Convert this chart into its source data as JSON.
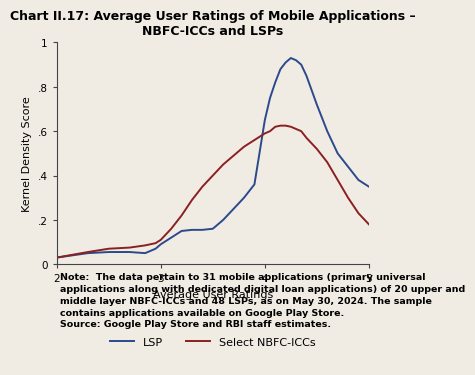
{
  "title": "Chart II.17: Average User Ratings of Mobile Applications –\nNBFC-ICCs and LSPs",
  "xlabel": "Average User Ratings",
  "ylabel": "Kernel Density Score",
  "background_color": "#f0ece4",
  "lsp_color": "#2b4a8c",
  "nbfc_color": "#8b2020",
  "lsp_label": "LSP",
  "nbfc_label": "Select NBFC-ICCs",
  "xlim": [
    2,
    5
  ],
  "ylim": [
    0,
    1.0
  ],
  "yticks": [
    0,
    0.2,
    0.4,
    0.6,
    0.8,
    1.0
  ],
  "ytick_labels": [
    "0",
    ".2",
    ".4",
    ".6",
    ".8",
    "1"
  ],
  "xticks": [
    2,
    3,
    4,
    5
  ],
  "lsp_x": [
    2.0,
    2.3,
    2.5,
    2.7,
    2.85,
    2.95,
    3.0,
    3.1,
    3.2,
    3.3,
    3.4,
    3.5,
    3.6,
    3.7,
    3.8,
    3.9,
    4.0,
    4.05,
    4.1,
    4.15,
    4.2,
    4.25,
    4.3,
    4.35,
    4.4,
    4.5,
    4.6,
    4.7,
    4.8,
    4.9,
    5.0
  ],
  "lsp_y": [
    0.03,
    0.05,
    0.055,
    0.055,
    0.05,
    0.07,
    0.09,
    0.12,
    0.15,
    0.155,
    0.155,
    0.16,
    0.2,
    0.25,
    0.3,
    0.36,
    0.65,
    0.75,
    0.82,
    0.88,
    0.91,
    0.93,
    0.92,
    0.9,
    0.85,
    0.72,
    0.6,
    0.5,
    0.44,
    0.38,
    0.35
  ],
  "nbfc_x": [
    2.0,
    2.3,
    2.5,
    2.7,
    2.85,
    2.95,
    3.0,
    3.1,
    3.2,
    3.3,
    3.4,
    3.5,
    3.6,
    3.7,
    3.8,
    3.9,
    4.0,
    4.05,
    4.1,
    4.15,
    4.2,
    4.25,
    4.3,
    4.35,
    4.4,
    4.5,
    4.6,
    4.7,
    4.8,
    4.9,
    5.0
  ],
  "nbfc_y": [
    0.03,
    0.055,
    0.07,
    0.075,
    0.085,
    0.095,
    0.11,
    0.16,
    0.22,
    0.29,
    0.35,
    0.4,
    0.45,
    0.49,
    0.53,
    0.56,
    0.59,
    0.6,
    0.62,
    0.625,
    0.625,
    0.62,
    0.61,
    0.6,
    0.57,
    0.52,
    0.46,
    0.38,
    0.3,
    0.23,
    0.18
  ],
  "note_text": "Note:  The data pertain to 31 mobile applications (primary universal\napplications along with dedicated digital loan applications) of 20 upper and\nmiddle layer NBFC-ICCs and 48 LSPs, as on May 30, 2024. The sample\ncontains applications available on Google Play Store.\nSource: Google Play Store and RBI staff estimates.",
  "title_fontsize": 9.0,
  "axis_label_fontsize": 8.0,
  "tick_fontsize": 7.5,
  "legend_fontsize": 8.0,
  "note_fontsize": 6.8
}
